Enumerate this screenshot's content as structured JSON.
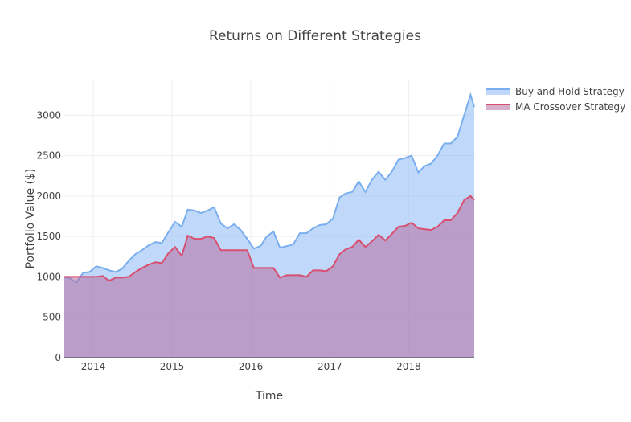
{
  "chart_data": {
    "type": "area",
    "title": "Returns on Different Strategies",
    "xlabel": "Time",
    "ylabel": "Portfolio Value ($)",
    "x_ticks": [
      "2014",
      "2015",
      "2016",
      "2017",
      "2018"
    ],
    "y_ticks": [
      "0",
      "500",
      "1000",
      "1500",
      "2000",
      "2500",
      "3000"
    ],
    "ylim": [
      0,
      3430
    ],
    "xlim": [
      "2013-08-20",
      "2018-11-01"
    ],
    "grid": true,
    "legend_position": "top-right",
    "x": [
      "2013-08-20",
      "2013-09-15",
      "2013-10-15",
      "2013-11-15",
      "2013-12-15",
      "2014-01-15",
      "2014-02-15",
      "2014-03-15",
      "2014-04-15",
      "2014-05-15",
      "2014-06-15",
      "2014-07-15",
      "2014-08-15",
      "2014-09-15",
      "2014-10-15",
      "2014-11-15",
      "2014-12-15",
      "2015-01-15",
      "2015-02-15",
      "2015-03-15",
      "2015-04-15",
      "2015-05-15",
      "2015-06-15",
      "2015-07-15",
      "2015-08-15",
      "2015-09-15",
      "2015-10-15",
      "2015-11-15",
      "2015-12-15",
      "2016-01-15",
      "2016-02-15",
      "2016-03-15",
      "2016-04-15",
      "2016-05-15",
      "2016-06-15",
      "2016-07-15",
      "2016-08-15",
      "2016-09-15",
      "2016-10-15",
      "2016-11-15",
      "2016-12-15",
      "2017-01-15",
      "2017-02-15",
      "2017-03-15",
      "2017-04-15",
      "2017-05-15",
      "2017-06-15",
      "2017-07-15",
      "2017-08-15",
      "2017-09-15",
      "2017-10-15",
      "2017-11-15",
      "2017-12-15",
      "2018-01-15",
      "2018-02-15",
      "2018-03-15",
      "2018-04-15",
      "2018-05-15",
      "2018-06-15",
      "2018-07-15",
      "2018-08-15",
      "2018-09-15",
      "2018-10-15",
      "2018-11-01"
    ],
    "series": [
      {
        "name": "Buy and Hold Strategy",
        "color": "#7aaeee",
        "fill": "rgba(140,185,245,0.55)",
        "values": [
          1000,
          980,
          930,
          1050,
          1060,
          1130,
          1110,
          1080,
          1060,
          1100,
          1200,
          1280,
          1330,
          1390,
          1430,
          1420,
          1550,
          1680,
          1620,
          1830,
          1820,
          1790,
          1820,
          1860,
          1660,
          1600,
          1650,
          1580,
          1470,
          1350,
          1380,
          1500,
          1560,
          1360,
          1380,
          1400,
          1540,
          1540,
          1600,
          1640,
          1650,
          1720,
          1980,
          2030,
          2050,
          2180,
          2050,
          2200,
          2300,
          2200,
          2300,
          2450,
          2470,
          2500,
          2290,
          2370,
          2400,
          2500,
          2650,
          2650,
          2730,
          3000,
          3250,
          3100
        ]
      },
      {
        "name": "MA Crossover Strategy",
        "color": "#d94f70",
        "fill": "rgba(180,110,160,0.55)",
        "values": [
          1000,
          1000,
          1000,
          1000,
          1000,
          1000,
          1010,
          950,
          990,
          990,
          1000,
          1060,
          1110,
          1150,
          1180,
          1170,
          1290,
          1370,
          1260,
          1510,
          1470,
          1470,
          1500,
          1480,
          1330,
          1330,
          1330,
          1330,
          1330,
          1110,
          1110,
          1110,
          1110,
          990,
          1020,
          1020,
          1020,
          1000,
          1080,
          1080,
          1070,
          1130,
          1280,
          1340,
          1370,
          1460,
          1370,
          1440,
          1520,
          1450,
          1530,
          1620,
          1630,
          1670,
          1600,
          1590,
          1580,
          1620,
          1700,
          1700,
          1790,
          1950,
          2000,
          1950
        ]
      }
    ]
  }
}
